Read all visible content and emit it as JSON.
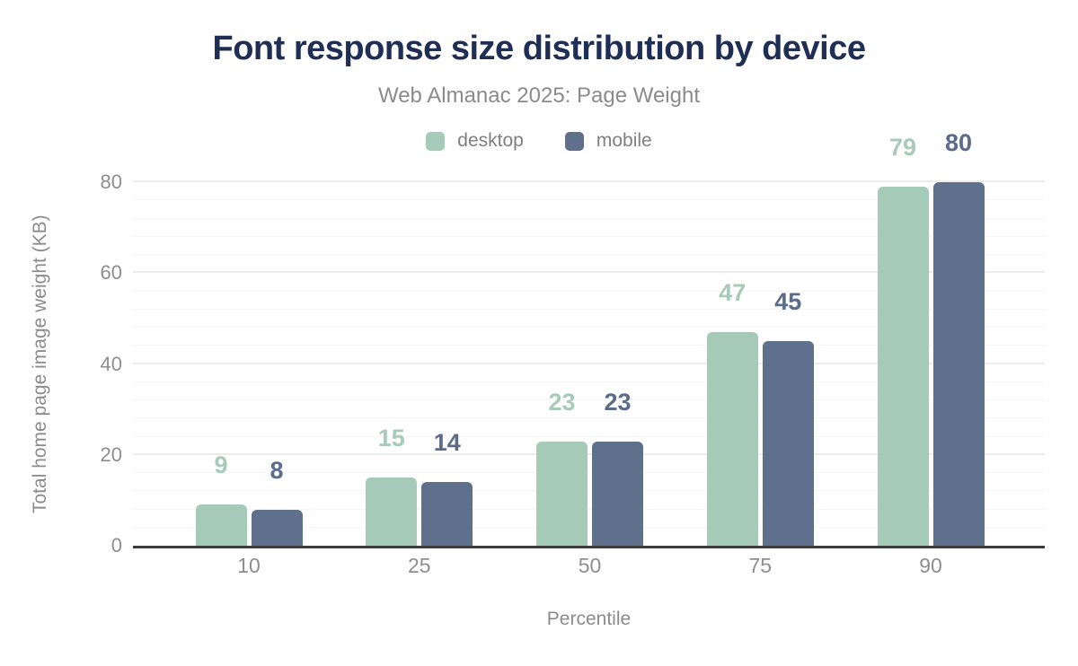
{
  "colors": {
    "background": "#ffffff",
    "title": "#1f2e55",
    "muted_text": "#8b8b8b",
    "tick_text": "#8e8e8e",
    "legend_text": "#7f7f7f",
    "axis_line": "#3b3b3b",
    "grid_major": "#ececec",
    "grid_minor": "#f6f6f6"
  },
  "chart_data": {
    "type": "bar",
    "title": "Font response size distribution by device",
    "subtitle": "Web Almanac 2025: Page Weight",
    "xlabel": "Percentile",
    "ylabel": "Total home page image weight (KB)",
    "categories": [
      "10",
      "25",
      "50",
      "75",
      "90"
    ],
    "series": [
      {
        "name": "desktop",
        "color": "#a6cab8",
        "label_color": "#a7cab9",
        "values": [
          9,
          15,
          23,
          47,
          79
        ]
      },
      {
        "name": "mobile",
        "color": "#5f708c",
        "label_color": "#5a6b8b",
        "values": [
          8,
          14,
          23,
          45,
          80
        ]
      }
    ],
    "ylim": [
      0,
      80
    ],
    "yticks": [
      0,
      20,
      40,
      60,
      80
    ],
    "grid": {
      "minor_step": 4,
      "major_step": 20
    },
    "legend_position": "top",
    "value_labels": true
  }
}
